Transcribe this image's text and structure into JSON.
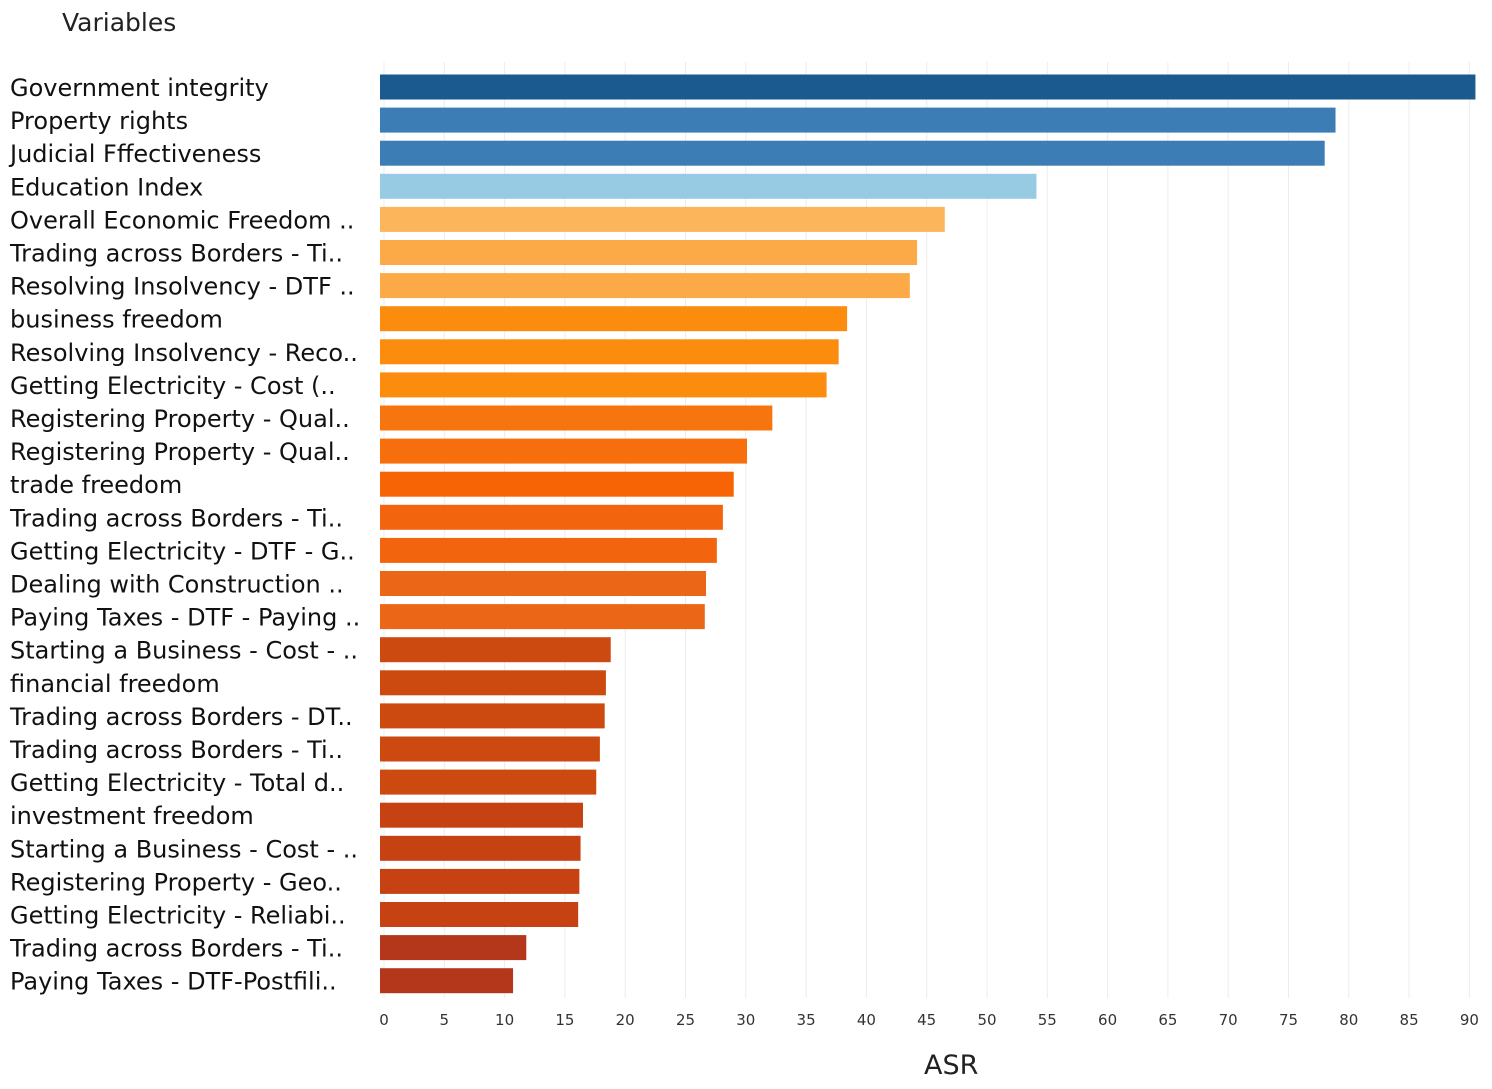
{
  "chart_data": {
    "type": "bar",
    "orientation": "horizontal",
    "row_header": "Variables",
    "xlabel": "ASR",
    "ylabel": "",
    "xlim": [
      0,
      90
    ],
    "x_ticks": [
      0,
      5,
      10,
      15,
      20,
      25,
      30,
      35,
      40,
      45,
      50,
      55,
      60,
      65,
      70,
      75,
      80,
      85,
      90
    ],
    "grid": "vertical",
    "categories": [
      "Government integrity",
      "Property rights",
      "Judicial Fffectiveness",
      "Education Index",
      "Overall Economic Freedom ..",
      "Trading across Borders - Ti..",
      "Resolving Insolvency - DTF ..",
      "business freedom",
      "Resolving Insolvency - Reco..",
      "Getting Electricity - Cost (..",
      "Registering Property - Qual..",
      "Registering Property - Qual..",
      "trade freedom",
      "Trading across Borders - Ti..",
      "Getting Electricity - DTF - G..",
      "Dealing with Construction ..",
      "Paying Taxes - DTF - Paying ..",
      "Starting a Business - Cost - ..",
      "financial freedom",
      "Trading across Borders - DT..",
      "Trading across Borders - Ti..",
      "Getting Electricity - Total d..",
      "investment freedom",
      "Starting a Business - Cost - ..",
      "Registering Property - Geo..",
      "Getting Electricity - Reliabi..",
      "Trading across Borders - Ti..",
      "Paying Taxes - DTF-Postfili.."
    ],
    "values": [
      90.5,
      78.9,
      78.0,
      54.1,
      46.5,
      44.2,
      43.6,
      38.4,
      37.7,
      36.7,
      32.2,
      30.1,
      29.0,
      28.1,
      27.6,
      26.7,
      26.6,
      18.8,
      18.4,
      18.3,
      17.9,
      17.6,
      16.5,
      16.3,
      16.2,
      16.1,
      11.8,
      10.7
    ],
    "colors": [
      "#1a5a8e",
      "#3b7db4",
      "#3b7db4",
      "#97cbe3",
      "#fdb55b",
      "#fcaa48",
      "#fcaa48",
      "#fb8c0e",
      "#fb8c0e",
      "#fb8c0e",
      "#f7750f",
      "#f76e0c",
      "#f76406",
      "#f3640f",
      "#f3640f",
      "#ec6617",
      "#ec6617",
      "#cc4a10",
      "#cc4a10",
      "#cc4a10",
      "#cc4a10",
      "#cc4a10",
      "#c64212",
      "#c64212",
      "#c64212",
      "#c64212",
      "#b5371b",
      "#b5371b"
    ]
  }
}
